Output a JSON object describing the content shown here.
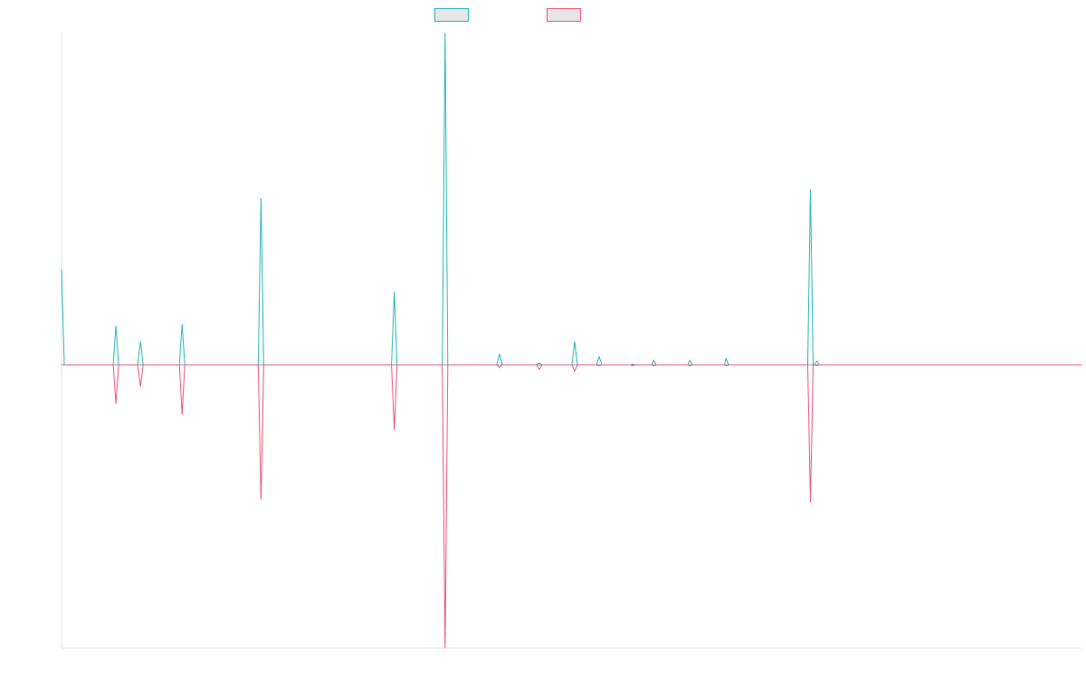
{
  "legend": {
    "series_1_label": "",
    "series_2_label": ""
  },
  "colors": {
    "series_1": "#2ab7b7",
    "series_2": "#f0557a",
    "axis": "#e6e6e6",
    "zero_line": "#8c9aa6",
    "legend_fill": "#e6e6e6"
  },
  "chart_data": {
    "type": "line",
    "title": "",
    "xlabel": "",
    "ylabel": "",
    "grid": false,
    "legend_position": "top-center",
    "xlim": [
      0,
      1125
    ],
    "ylim": [
      -313,
      367
    ],
    "series": [
      {
        "color": "#2ab7b7",
        "points": [
          [
            0,
            106
          ],
          [
            3,
            0
          ],
          [
            57,
            0
          ],
          [
            60,
            43
          ],
          [
            63,
            0
          ],
          [
            84,
            0
          ],
          [
            87,
            26
          ],
          [
            90,
            0
          ],
          [
            130,
            0
          ],
          [
            133,
            45
          ],
          [
            136,
            0
          ],
          [
            217,
            0
          ],
          [
            220,
            184
          ],
          [
            223,
            0
          ],
          [
            364,
            0
          ],
          [
            367,
            81
          ],
          [
            370,
            0
          ],
          [
            420,
            0
          ],
          [
            423,
            367
          ],
          [
            426,
            0
          ],
          [
            480,
            0
          ],
          [
            483,
            12
          ],
          [
            486,
            0
          ],
          [
            524,
            0
          ],
          [
            527,
            2
          ],
          [
            530,
            0
          ],
          [
            563,
            0
          ],
          [
            566,
            26
          ],
          [
            569,
            0
          ],
          [
            590,
            0
          ],
          [
            593,
            9
          ],
          [
            596,
            0
          ],
          [
            628,
            0
          ],
          [
            630,
            1
          ],
          [
            632,
            0
          ],
          [
            651,
            0
          ],
          [
            653,
            5
          ],
          [
            656,
            0
          ],
          [
            691,
            0
          ],
          [
            693,
            5
          ],
          [
            696,
            0
          ],
          [
            731,
            0
          ],
          [
            733,
            7
          ],
          [
            736,
            0
          ],
          [
            823,
            0
          ],
          [
            826,
            194
          ],
          [
            829,
            0
          ],
          [
            830,
            0
          ],
          [
            833,
            4
          ],
          [
            836,
            0
          ],
          [
            1125,
            0
          ]
        ]
      },
      {
        "color": "#f0557a",
        "points": [
          [
            0,
            0
          ],
          [
            57,
            0
          ],
          [
            60,
            -43
          ],
          [
            63,
            0
          ],
          [
            84,
            0
          ],
          [
            87,
            -24
          ],
          [
            90,
            0
          ],
          [
            130,
            0
          ],
          [
            133,
            -55
          ],
          [
            136,
            0
          ],
          [
            217,
            0
          ],
          [
            220,
            -149
          ],
          [
            223,
            0
          ],
          [
            364,
            0
          ],
          [
            367,
            -72
          ],
          [
            370,
            0
          ],
          [
            420,
            0
          ],
          [
            423,
            -313
          ],
          [
            426,
            0
          ],
          [
            480,
            0
          ],
          [
            483,
            -3
          ],
          [
            486,
            0
          ],
          [
            524,
            0
          ],
          [
            527,
            -5
          ],
          [
            530,
            0
          ],
          [
            563,
            0
          ],
          [
            566,
            -7
          ],
          [
            569,
            0
          ],
          [
            590,
            0
          ],
          [
            593,
            -1
          ],
          [
            596,
            0
          ],
          [
            628,
            0
          ],
          [
            630,
            -1
          ],
          [
            632,
            0
          ],
          [
            651,
            0
          ],
          [
            653,
            -1
          ],
          [
            656,
            0
          ],
          [
            691,
            0
          ],
          [
            693,
            -1
          ],
          [
            696,
            0
          ],
          [
            731,
            0
          ],
          [
            733,
            -1
          ],
          [
            736,
            0
          ],
          [
            823,
            0
          ],
          [
            826,
            -152
          ],
          [
            829,
            0
          ],
          [
            830,
            0
          ],
          [
            833,
            -1
          ],
          [
            836,
            0
          ],
          [
            1125,
            0
          ]
        ]
      }
    ]
  }
}
